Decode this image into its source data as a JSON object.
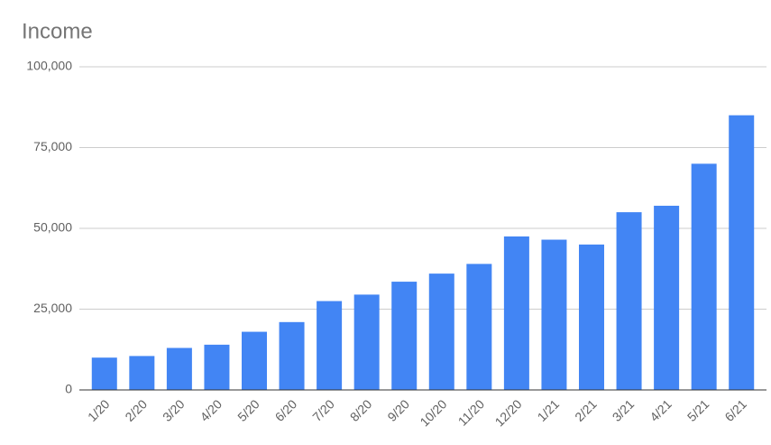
{
  "chart_data": {
    "type": "bar",
    "title": "Income",
    "categories": [
      "1/20",
      "2/20",
      "3/20",
      "4/20",
      "5/20",
      "6/20",
      "7/20",
      "8/20",
      "9/20",
      "10/20",
      "11/20",
      "12/20",
      "1/21",
      "2/21",
      "3/21",
      "4/21",
      "5/21",
      "6/21"
    ],
    "values": [
      10000,
      10500,
      13000,
      14000,
      18000,
      21000,
      27500,
      29500,
      33500,
      36000,
      39000,
      47500,
      46500,
      45000,
      55000,
      57000,
      70000,
      85000
    ],
    "color": "#4285f4",
    "ylim": [
      0,
      100000
    ],
    "yticks": [
      0,
      {
        "value": 25000,
        "label": "25,000"
      },
      {
        "value": 50000,
        "label": "50,000"
      },
      {
        "value": 75000,
        "label": "75,000"
      },
      {
        "value": 100000,
        "label": "100,000"
      }
    ],
    "grid": true
  }
}
